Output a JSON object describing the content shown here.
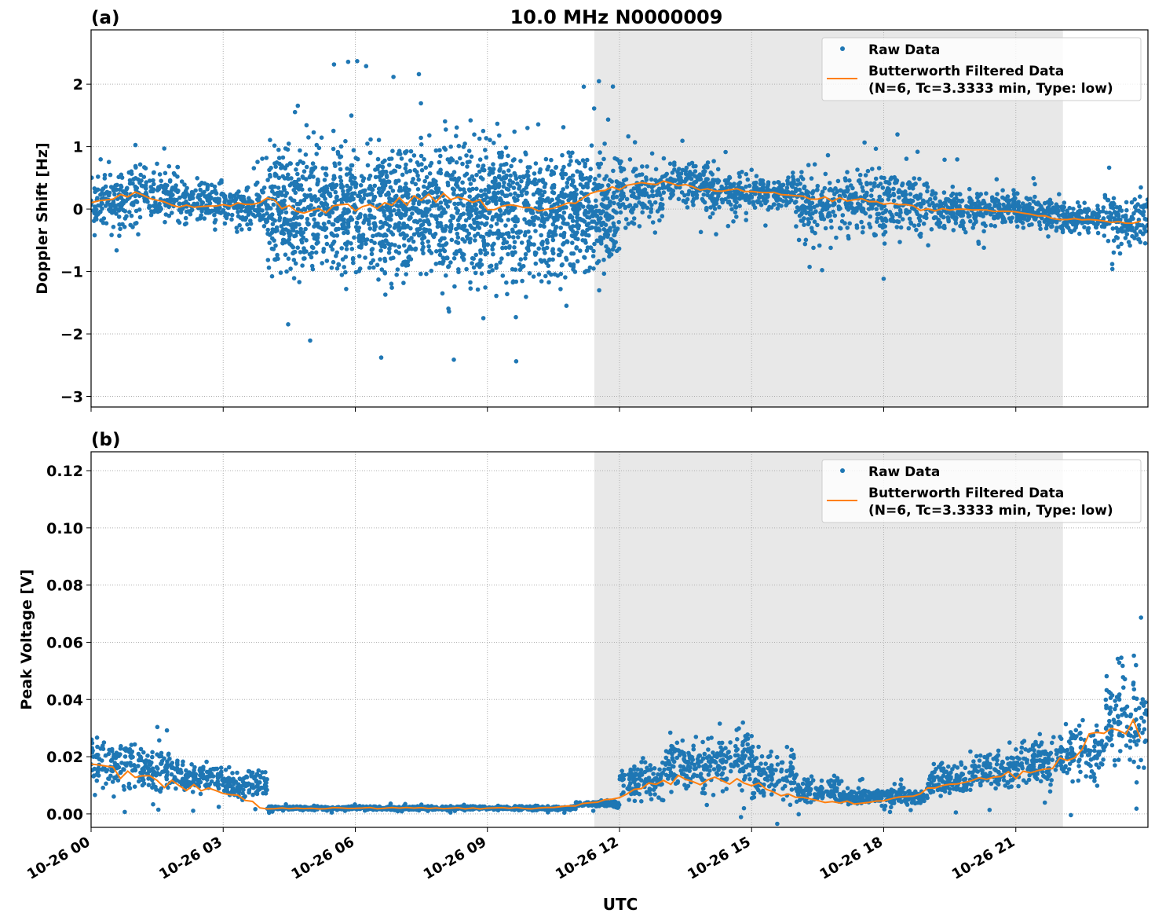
{
  "title": "10.0 MHz N0000009",
  "xlabel": "UTC",
  "x_ticks": [
    "10-26 00",
    "10-26 03",
    "10-26 06",
    "10-26 09",
    "10-26 12",
    "10-26 15",
    "10-26 18",
    "10-26 21"
  ],
  "colors": {
    "raw": "#1f77b4",
    "filtered": "#ff7f0e",
    "shade": "#e8e8e8"
  },
  "chart_data": [
    {
      "type": "scatter",
      "panel_label": "(a)",
      "ylabel": "Doppler Shift [Hz]",
      "ylim": [
        -3.17,
        2.87
      ],
      "xlim_hours": [
        0,
        24
      ],
      "y_ticks": [
        "2",
        "1",
        "0",
        "−1",
        "−2",
        "−3"
      ],
      "y_tick_values": [
        2,
        1,
        0,
        -1,
        -2,
        -3
      ],
      "shaded_interval_hours": [
        11.43,
        22.07
      ],
      "grid": true,
      "legend": "top-right",
      "hours": [
        0,
        1,
        2,
        3,
        4,
        5,
        6,
        7,
        8,
        9,
        10,
        11,
        12,
        13,
        14,
        15,
        16,
        17,
        18,
        19,
        20,
        21,
        22,
        23
      ],
      "raw_range": [
        [
          -0.5,
          0.7
        ],
        [
          -0.3,
          0.8
        ],
        [
          -0.4,
          0.6
        ],
        [
          -0.5,
          0.6
        ],
        [
          -1.5,
          1.5
        ],
        [
          -1.5,
          1.5
        ],
        [
          -1.5,
          1.5
        ],
        [
          -1.5,
          1.5
        ],
        [
          -1.6,
          1.6
        ],
        [
          -1.6,
          1.6
        ],
        [
          -1.5,
          1.4
        ],
        [
          -1.4,
          1.3
        ],
        [
          -0.5,
          1.0
        ],
        [
          -0.1,
          0.9
        ],
        [
          -0.2,
          0.7
        ],
        [
          -0.1,
          0.6
        ],
        [
          -0.6,
          0.8
        ],
        [
          -0.7,
          0.9
        ],
        [
          -0.6,
          0.8
        ],
        [
          -0.5,
          0.5
        ],
        [
          -0.4,
          0.4
        ],
        [
          -0.4,
          0.3
        ],
        [
          -0.5,
          0.2
        ],
        [
          -0.8,
          0.4
        ]
      ],
      "filtered": [
        0.1,
        0.25,
        0.05,
        0.05,
        0.1,
        0.0,
        0.05,
        0.1,
        0.2,
        0.05,
        0.0,
        0.1,
        0.35,
        0.45,
        0.3,
        0.3,
        0.2,
        0.15,
        0.1,
        0.0,
        0.0,
        -0.05,
        -0.15,
        -0.2
      ],
      "series": [
        {
          "name": "Raw Data"
        },
        {
          "name": "Butterworth Filtered Data",
          "name_line2": "(N=6, Tc=3.3333 min, Type: low)"
        }
      ]
    },
    {
      "type": "scatter",
      "panel_label": "(b)",
      "ylabel": "Peak Voltage [V]",
      "ylim": [
        -0.0047,
        0.1266
      ],
      "xlim_hours": [
        0,
        24
      ],
      "y_ticks": [
        "0.12",
        "0.10",
        "0.08",
        "0.06",
        "0.04",
        "0.02",
        "0.00"
      ],
      "y_tick_values": [
        0.12,
        0.1,
        0.08,
        0.06,
        0.04,
        0.02,
        0.0
      ],
      "shaded_interval_hours": [
        11.43,
        22.07
      ],
      "grid": true,
      "legend": "top-right",
      "hours": [
        0,
        1,
        2,
        3,
        4,
        5,
        6,
        7,
        8,
        9,
        10,
        11,
        12,
        13,
        14,
        15,
        16,
        17,
        18,
        19,
        20,
        21,
        22,
        23
      ],
      "raw_range": [
        [
          0.005,
          0.03
        ],
        [
          0.005,
          0.025
        ],
        [
          0.005,
          0.02
        ],
        [
          0.003,
          0.018
        ],
        [
          0.001,
          0.003
        ],
        [
          0.001,
          0.003
        ],
        [
          0.001,
          0.003
        ],
        [
          0.001,
          0.003
        ],
        [
          0.001,
          0.003
        ],
        [
          0.001,
          0.003
        ],
        [
          0.001,
          0.003
        ],
        [
          0.002,
          0.005
        ],
        [
          0.003,
          0.02
        ],
        [
          0.004,
          0.03
        ],
        [
          0.003,
          0.035
        ],
        [
          0.003,
          0.025
        ],
        [
          0.002,
          0.015
        ],
        [
          0.002,
          0.01
        ],
        [
          0.002,
          0.01
        ],
        [
          0.003,
          0.02
        ],
        [
          0.005,
          0.025
        ],
        [
          0.006,
          0.03
        ],
        [
          0.007,
          0.035
        ],
        [
          0.008,
          0.06
        ]
      ],
      "filtered": [
        0.018,
        0.013,
        0.01,
        0.008,
        0.002,
        0.002,
        0.002,
        0.002,
        0.002,
        0.002,
        0.002,
        0.003,
        0.006,
        0.012,
        0.012,
        0.01,
        0.006,
        0.004,
        0.004,
        0.008,
        0.011,
        0.014,
        0.018,
        0.03
      ],
      "series": [
        {
          "name": "Raw Data"
        },
        {
          "name": "Butterworth Filtered Data",
          "name_line2": "(N=6, Tc=3.3333 min, Type: low)"
        }
      ]
    }
  ]
}
